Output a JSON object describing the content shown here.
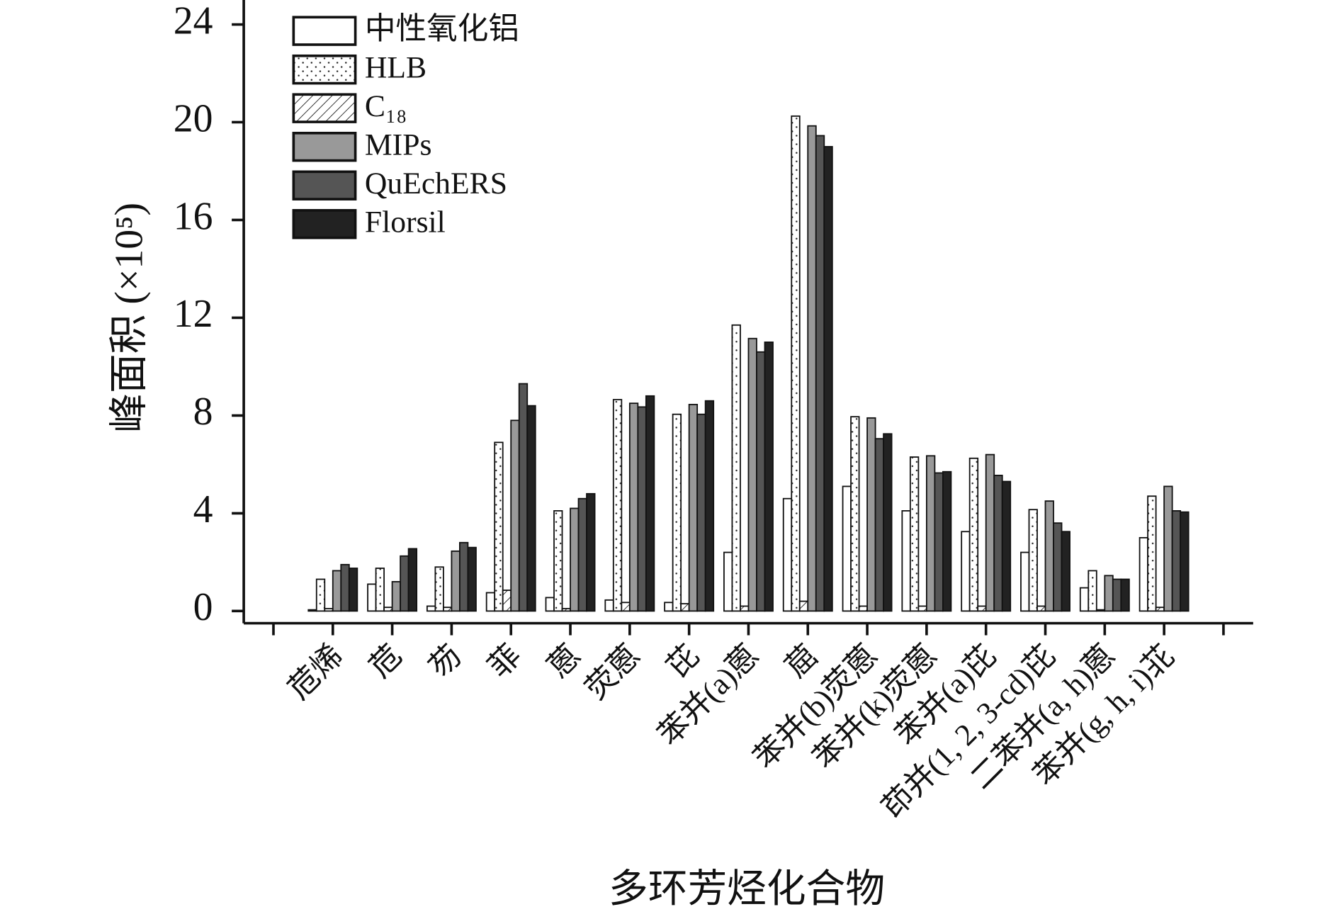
{
  "chart_data": {
    "type": "bar",
    "y_label": "峰面积 (×10⁵)",
    "x_label": "多环芳烃化合物",
    "categories": [
      "苊烯",
      "苊",
      "芴",
      "菲",
      "蒽",
      "荧蒽",
      "芘",
      "苯并(a)蒽",
      "䓛",
      "苯并(b)荧蒽",
      "苯并(k)荧蒽",
      "苯并(a)芘",
      "茚并(1, 2, 3-cd)芘",
      "二苯并(a, h)蒽",
      "苯并(g, h, i)苝"
    ],
    "series": [
      {
        "name": "中性氧化铝",
        "color": "#ffffff",
        "pattern": "none",
        "values": [
          0.05,
          1.1,
          0.2,
          0.75,
          0.55,
          0.45,
          0.35,
          2.4,
          4.6,
          5.1,
          4.1,
          3.25,
          2.4,
          0.95,
          3.0
        ]
      },
      {
        "name": "HLB",
        "color": "#ffffff",
        "pattern": "dots",
        "values": [
          1.3,
          1.75,
          1.8,
          6.9,
          4.1,
          8.65,
          8.05,
          11.7,
          20.25,
          7.95,
          6.3,
          6.25,
          4.15,
          1.65,
          4.7
        ]
      },
      {
        "name": "C₁₈",
        "color": "#ffffff",
        "pattern": "hatch",
        "values": [
          0.1,
          0.15,
          0.15,
          0.85,
          0.1,
          0.35,
          0.3,
          0.2,
          0.4,
          0.2,
          0.2,
          0.2,
          0.2,
          0.05,
          0.15
        ]
      },
      {
        "name": "MIPs",
        "color": "#999999",
        "pattern": "none",
        "values": [
          1.65,
          1.2,
          2.45,
          7.8,
          4.2,
          8.5,
          8.45,
          11.15,
          19.85,
          7.9,
          6.35,
          6.4,
          4.5,
          1.45,
          5.1
        ]
      },
      {
        "name": "QuEchERS",
        "color": "#555555",
        "pattern": "none",
        "values": [
          1.9,
          2.25,
          2.8,
          9.3,
          4.6,
          8.35,
          8.05,
          10.6,
          19.45,
          7.05,
          5.65,
          5.55,
          3.6,
          1.3,
          4.1
        ]
      },
      {
        "name": "Florsil",
        "color": "#222222",
        "pattern": "none",
        "values": [
          1.75,
          2.55,
          2.6,
          8.4,
          4.8,
          8.8,
          8.6,
          11.0,
          19.0,
          7.25,
          5.7,
          5.3,
          3.25,
          1.3,
          4.05
        ]
      }
    ],
    "ylim": [
      -0.5,
      25
    ],
    "yticks": [
      0,
      4,
      8,
      12,
      16,
      20,
      24
    ]
  }
}
